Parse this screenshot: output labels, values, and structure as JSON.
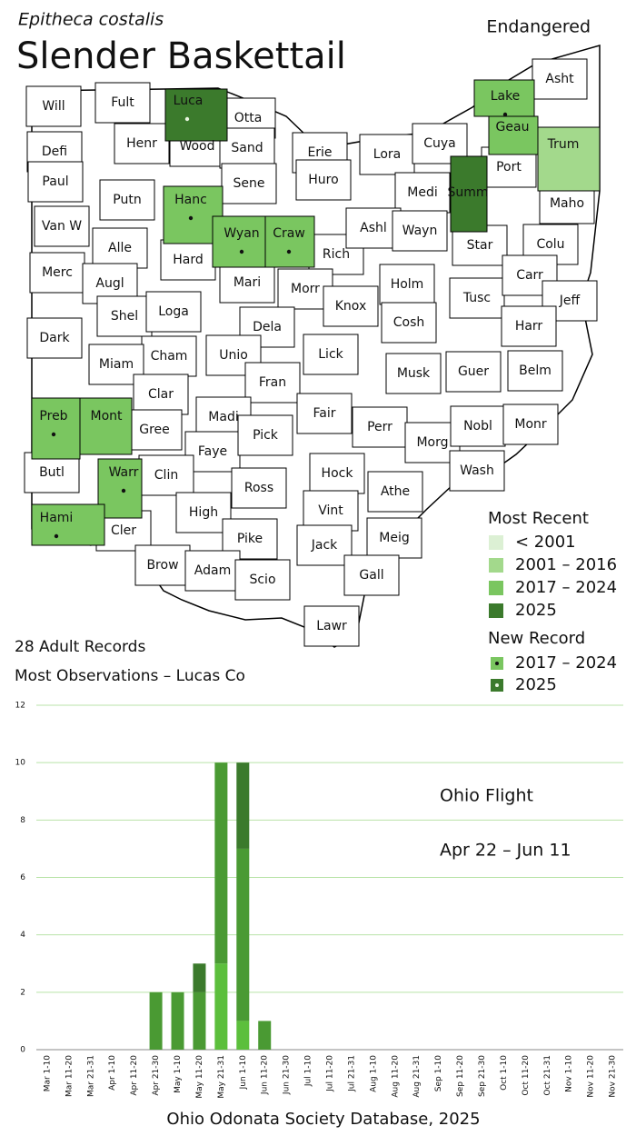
{
  "header": {
    "scientific_name": "Epitheca costalis",
    "common_name": "Slender Baskettail",
    "status": "Endangered"
  },
  "map": {
    "counties": [
      {
        "label": "Will"
      },
      {
        "label": "Fult"
      },
      {
        "label": "Luca",
        "recent": "2025",
        "new_record": "2025"
      },
      {
        "label": "Otta"
      },
      {
        "label": "Wood"
      },
      {
        "label": "Sand"
      },
      {
        "label": "Henr"
      },
      {
        "label": "Defi"
      },
      {
        "label": "Erie"
      },
      {
        "label": "Lora"
      },
      {
        "label": "Cuya"
      },
      {
        "label": "Lake",
        "recent": "2017 – 2024",
        "new_record": "2017 – 2024"
      },
      {
        "label": "Asht"
      },
      {
        "label": "Geau",
        "recent": "2017 – 2024"
      },
      {
        "label": "Trum",
        "recent": "2001 – 2016"
      },
      {
        "label": "Port"
      },
      {
        "label": "Summ",
        "recent": "2025"
      },
      {
        "label": "Medi"
      },
      {
        "label": "Huro"
      },
      {
        "label": "Sene"
      },
      {
        "label": "Hanc",
        "recent": "2017 – 2024",
        "new_record": "2017 – 2024"
      },
      {
        "label": "Putn"
      },
      {
        "label": "Paul"
      },
      {
        "label": "Van W"
      },
      {
        "label": "Alle"
      },
      {
        "label": "Wyan",
        "recent": "2017 – 2024",
        "new_record": "2017 – 2024"
      },
      {
        "label": "Craw",
        "recent": "2017 – 2024",
        "new_record": "2017 – 2024"
      },
      {
        "label": "Rich"
      },
      {
        "label": "Ashl"
      },
      {
        "label": "Wayn"
      },
      {
        "label": "Star"
      },
      {
        "label": "Colu"
      },
      {
        "label": "Maho"
      },
      {
        "label": "Merc"
      },
      {
        "label": "Augl"
      },
      {
        "label": "Hard"
      },
      {
        "label": "Mari"
      },
      {
        "label": "Morr"
      },
      {
        "label": "Knox"
      },
      {
        "label": "Holm"
      },
      {
        "label": "Tusc"
      },
      {
        "label": "Carr"
      },
      {
        "label": "Jeff"
      },
      {
        "label": "Shel"
      },
      {
        "label": "Loga"
      },
      {
        "label": "Dela"
      },
      {
        "label": "Cosh"
      },
      {
        "label": "Harr"
      },
      {
        "label": "Dark"
      },
      {
        "label": "Cham"
      },
      {
        "label": "Unio"
      },
      {
        "label": "Lick"
      },
      {
        "label": "Musk"
      },
      {
        "label": "Guer"
      },
      {
        "label": "Belm"
      },
      {
        "label": "Miam"
      },
      {
        "label": "Clar"
      },
      {
        "label": "Fran"
      },
      {
        "label": "Madi"
      },
      {
        "label": "Fair"
      },
      {
        "label": "Perr"
      },
      {
        "label": "Morg"
      },
      {
        "label": "Nobl"
      },
      {
        "label": "Monr"
      },
      {
        "label": "Preb",
        "recent": "2017 – 2024",
        "new_record": "2017 – 2024"
      },
      {
        "label": "Mont",
        "recent": "2017 – 2024"
      },
      {
        "label": "Gree"
      },
      {
        "label": "Faye"
      },
      {
        "label": "Pick"
      },
      {
        "label": "Butl"
      },
      {
        "label": "Warr",
        "recent": "2017 – 2024",
        "new_record": "2017 – 2024"
      },
      {
        "label": "Clin"
      },
      {
        "label": "Ross"
      },
      {
        "label": "Hock"
      },
      {
        "label": "Athe"
      },
      {
        "label": "Wash"
      },
      {
        "label": "Hami",
        "recent": "2017 – 2024",
        "new_record": "2017 – 2024"
      },
      {
        "label": "Cler"
      },
      {
        "label": "High"
      },
      {
        "label": "Vint"
      },
      {
        "label": "Pike"
      },
      {
        "label": "Jack"
      },
      {
        "label": "Meig"
      },
      {
        "label": "Brow"
      },
      {
        "label": "Adam"
      },
      {
        "label": "Scio"
      },
      {
        "label": "Gall"
      },
      {
        "label": "Lawr"
      }
    ],
    "legend_recent": {
      "title": "Most Recent",
      "items": [
        {
          "label": "< 2001",
          "color": "#dcf0d4"
        },
        {
          "label": "2001 – 2016",
          "color": "#a3d98c"
        },
        {
          "label": "2017 – 2024",
          "color": "#7ac660"
        },
        {
          "label": "2025",
          "color": "#3b7a2c"
        }
      ]
    },
    "legend_new": {
      "title": "New Record",
      "items": [
        {
          "label": "2017 – 2024",
          "color": "#7ac660"
        },
        {
          "label": "2025",
          "color": "#3b7a2c"
        }
      ]
    }
  },
  "stats": [
    "28 Adult Records",
    "Most Observations – Lucas Co"
  ],
  "chart_data": {
    "type": "bar",
    "stacked": true,
    "categories": [
      "Mar 1-10",
      "Mar 11-20",
      "Mar 21-31",
      "Apr 1-10",
      "Apr 11-20",
      "Apr 21-30",
      "May 1-10",
      "May 11-20",
      "May 21-31",
      "Jun 1-10",
      "Jun 11-20",
      "Jun 21-30",
      "Jul 1-10",
      "Jul 11-20",
      "Jul 21-31",
      "Aug 1-10",
      "Aug 11-20",
      "Aug 21-31",
      "Sep 1-10",
      "Sep 11-20",
      "Sep 21-30",
      "Oct 1-10",
      "Oct 11-20",
      "Oct 21-31",
      "Nov 1-10",
      "Nov 11-20",
      "Nov 21-30"
    ],
    "series": [
      {
        "color": "#5cbf3c",
        "values": [
          0,
          0,
          0,
          0,
          0,
          0,
          0,
          0,
          3,
          1,
          0,
          0,
          0,
          0,
          0,
          0,
          0,
          0,
          0,
          0,
          0,
          0,
          0,
          0,
          0,
          0,
          0
        ]
      },
      {
        "color": "#4a9a33",
        "values": [
          0,
          0,
          0,
          0,
          0,
          2,
          2,
          2,
          7,
          6,
          1,
          0,
          0,
          0,
          0,
          0,
          0,
          0,
          0,
          0,
          0,
          0,
          0,
          0,
          0,
          0,
          0
        ]
      },
      {
        "color": "#3b7a2c",
        "values": [
          0,
          0,
          0,
          0,
          0,
          0,
          0,
          1,
          0,
          3,
          0,
          0,
          0,
          0,
          0,
          0,
          0,
          0,
          0,
          0,
          0,
          0,
          0,
          0,
          0,
          0,
          0
        ]
      }
    ],
    "ylim": [
      0,
      12
    ],
    "yticks": [
      0,
      2,
      4,
      6,
      8,
      10,
      12
    ],
    "grid": true,
    "annotations": [
      "Ohio Flight",
      "Apr 22 – Jun 11"
    ]
  },
  "footer": "Ohio Odonata Society Database, 2025"
}
